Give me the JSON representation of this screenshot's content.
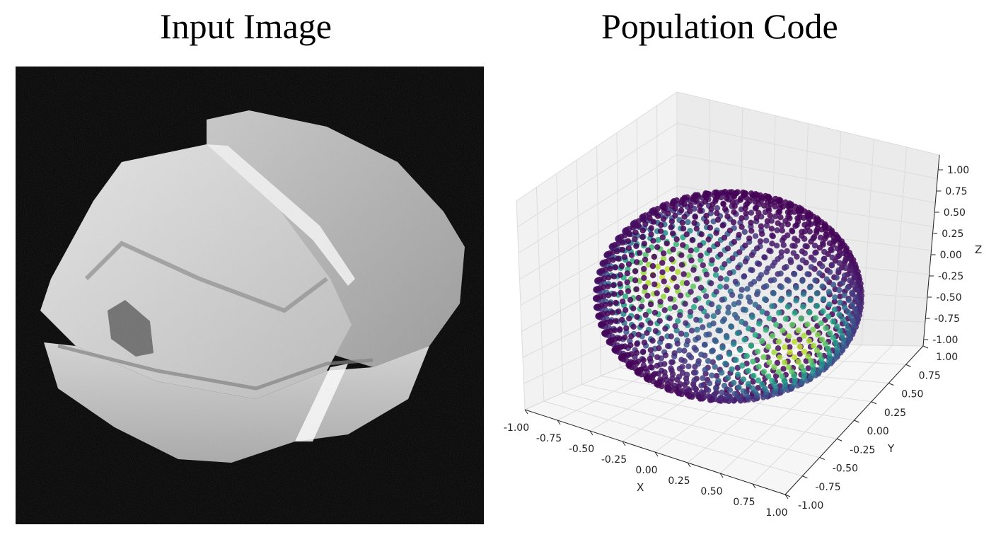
{
  "figure": {
    "left_title": "Input Image",
    "right_title": "Population Code"
  },
  "input_image": {
    "description_icon": "rendered-3d-object-icon"
  },
  "chart_data": {
    "type": "scatter",
    "projection": "3d",
    "xlabel": "X",
    "ylabel": "Y",
    "zlabel": "Z",
    "xlim": [
      -1.0,
      1.0
    ],
    "ylim": [
      -1.0,
      1.0
    ],
    "zlim": [
      -1.0,
      1.0
    ],
    "x_ticks": [
      "-1.00",
      "-0.75",
      "-0.50",
      "-0.25",
      "0.00",
      "0.25",
      "0.50",
      "0.75",
      "1.00"
    ],
    "y_ticks": [
      "1.00",
      "0.75",
      "0.50",
      "0.25",
      "0.00",
      "-0.25",
      "-0.50",
      "-0.75",
      "-1.00"
    ],
    "z_ticks": [
      "1.00",
      "0.75",
      "0.50",
      "0.25",
      "0.00",
      "-0.25",
      "-0.50",
      "-0.75",
      "-1.00"
    ],
    "points": "unit sphere, Fibonacci-sampled",
    "colormap": "viridis",
    "hotspots": [
      {
        "x": -0.75,
        "y": 0.35,
        "z": -0.15
      },
      {
        "x": 0.75,
        "y": -0.35,
        "z": -0.15
      }
    ],
    "grid": true,
    "colors": {
      "pane": "#f2f2f2",
      "grid": "#dcdcdc",
      "axis": "#222222"
    }
  }
}
